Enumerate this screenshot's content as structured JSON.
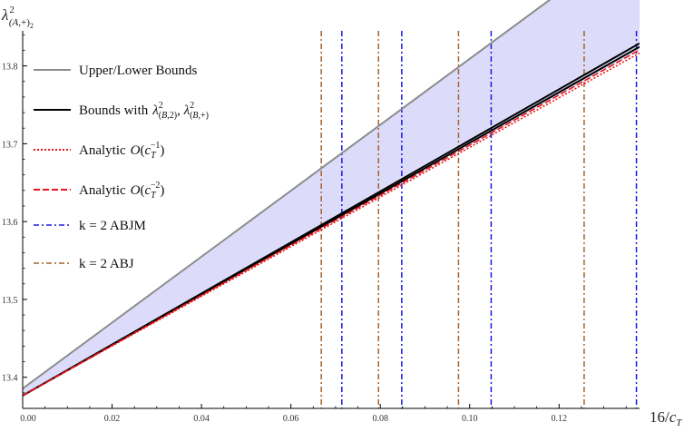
{
  "chart_data": {
    "type": "line",
    "title": "",
    "xlabel": "16/c_T",
    "ylabel": "λ²_(A,+)₂",
    "xlim": [
      0.0,
      0.138
    ],
    "ylim": [
      13.36,
      13.845
    ],
    "x_ticks": [
      0.0,
      0.02,
      0.04,
      0.06,
      0.08,
      0.1,
      0.12
    ],
    "x_tick_labels": [
      "0.00",
      "0.02",
      "0.04",
      "0.06",
      "0.08",
      "0.10",
      "0.12"
    ],
    "y_ticks": [
      13.4,
      13.5,
      13.6,
      13.7,
      13.8
    ],
    "y_tick_labels": [
      "13.4",
      "13.5",
      "13.6",
      "13.7",
      "13.8"
    ],
    "grid": false,
    "legend_position": "top-left",
    "shaded_region": {
      "color": "#dcdcfa",
      "x": [
        0.0,
        0.138
      ],
      "upper": [
        13.3855,
        13.97
      ],
      "lower": [
        13.3765,
        13.8205
      ]
    },
    "series": [
      {
        "name": "Upper/Lower Bounds",
        "style": "solid",
        "color": "#8c8c8c",
        "x": [
          0.0,
          0.138
        ],
        "y": [
          13.3855,
          13.97
        ]
      },
      {
        "name": "Bounds with",
        "name_math": "λ²_(B,2), λ²_(B,+)",
        "style": "solid",
        "color": "#000000",
        "x": [
          0.0,
          0.138
        ],
        "y": [
          13.3765,
          13.829
        ]
      },
      {
        "name": "Bounds with (lower)",
        "style": "solid",
        "color": "#000000",
        "legend": false,
        "x": [
          0.0,
          0.138
        ],
        "y": [
          13.3765,
          13.8245
        ]
      },
      {
        "name": "Analytic",
        "name_math": "O(c_T^-1)",
        "style": "dotted",
        "color": "#e8151b",
        "x": [
          0.0,
          0.138
        ],
        "y": [
          13.3765,
          13.8165
        ]
      },
      {
        "name": "Analytic",
        "name_math": "O(c_T^-2)",
        "style": "dashed",
        "color": "#e8151b",
        "x": [
          0.0,
          0.138
        ],
        "y": [
          13.3765,
          13.8205
        ]
      },
      {
        "name": "k = 2 ABJM",
        "style": "dashdot-vertical",
        "color": "#1a1ae0",
        "x_values": [
          0.0714,
          0.0848,
          0.1048,
          0.1373
        ]
      },
      {
        "name": "k = 2 ABJ",
        "style": "dashdot-vertical",
        "color": "#a0622d",
        "x_values": [
          0.0668,
          0.0796,
          0.0975,
          0.1256
        ]
      }
    ]
  }
}
